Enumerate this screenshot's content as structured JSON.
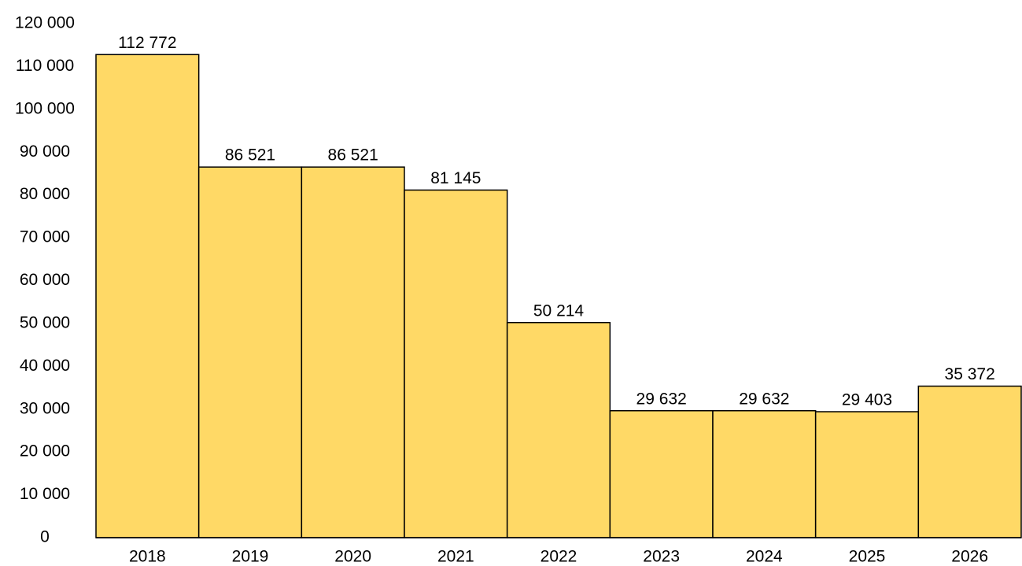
{
  "chart_data": {
    "type": "bar",
    "categories": [
      "2018",
      "2019",
      "2020",
      "2021",
      "2022",
      "2023",
      "2024",
      "2025",
      "2026"
    ],
    "values": [
      112772,
      86521,
      86521,
      81145,
      50214,
      29632,
      29632,
      29403,
      35372
    ],
    "value_labels": [
      "112 772",
      "86 521",
      "86 521",
      "81 145",
      "50 214",
      "29 632",
      "29 632",
      "29 403",
      "35 372"
    ],
    "color": "#ffd966",
    "ylim": [
      0,
      120000
    ],
    "yticks": [
      0,
      {
        "value": 10000,
        "label": "10 000"
      },
      {
        "value": 20000,
        "label": "20 000"
      },
      {
        "value": 30000,
        "label": "30 000"
      },
      {
        "value": 40000,
        "label": "40 000"
      },
      {
        "value": 50000,
        "label": "50 000"
      },
      {
        "value": 60000,
        "label": "60 000"
      },
      {
        "value": 70000,
        "label": "70 000"
      },
      {
        "value": 80000,
        "label": "80 000"
      },
      {
        "value": 90000,
        "label": "90 000"
      },
      {
        "value": 100000,
        "label": "100 000"
      },
      {
        "value": 110000,
        "label": "110 000"
      },
      {
        "value": 120000,
        "label": "120 000"
      }
    ],
    "grid": false
  }
}
